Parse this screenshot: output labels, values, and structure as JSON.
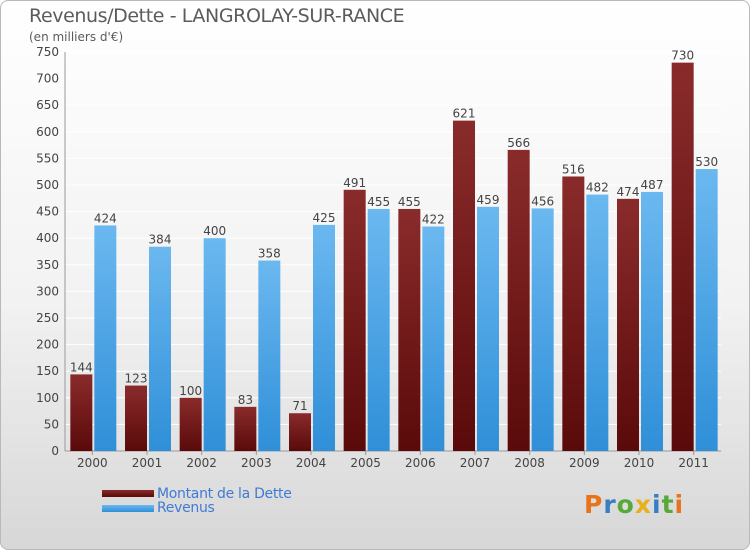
{
  "header": {
    "title": "Revenus/Dette - LANGROLAY-SUR-RANCE",
    "subtitle": "(en milliers d'€)"
  },
  "legend": {
    "dette_label": "Montant de la Dette",
    "revenus_label": "Revenus"
  },
  "logo": {
    "text": "Proxiti",
    "letter_colors": [
      "#e8731a",
      "#3a7ec2",
      "#58a83a",
      "#e8b019",
      "#3a7ec2",
      "#58a83a",
      "#e8731a"
    ]
  },
  "colors": {
    "dette_top": "#8a2b2b",
    "dette_bottom": "#5a0a0a",
    "revenus_top": "#6bb8f0",
    "revenus_bottom": "#2f8fd8",
    "grid": "#ffffff",
    "axis_text": "#444444"
  },
  "chart_data": {
    "type": "bar",
    "title": "Revenus/Dette - LANGROLAY-SUR-RANCE",
    "subtitle": "(en milliers d'€)",
    "categories": [
      "2000",
      "2001",
      "2002",
      "2003",
      "2004",
      "2005",
      "2006",
      "2007",
      "2008",
      "2009",
      "2010",
      "2011"
    ],
    "series": [
      {
        "name": "Montant de la Dette",
        "values": [
          144,
          123,
          100,
          83,
          71,
          491,
          455,
          621,
          566,
          516,
          474,
          730
        ]
      },
      {
        "name": "Revenus",
        "values": [
          424,
          384,
          400,
          358,
          425,
          455,
          422,
          459,
          456,
          482,
          487,
          530
        ]
      }
    ],
    "ylim": [
      0,
      750
    ],
    "yticks": [
      0,
      50,
      100,
      150,
      200,
      250,
      300,
      350,
      400,
      450,
      500,
      550,
      600,
      650,
      700,
      750
    ],
    "grid": true,
    "legend_position": "bottom-left"
  }
}
